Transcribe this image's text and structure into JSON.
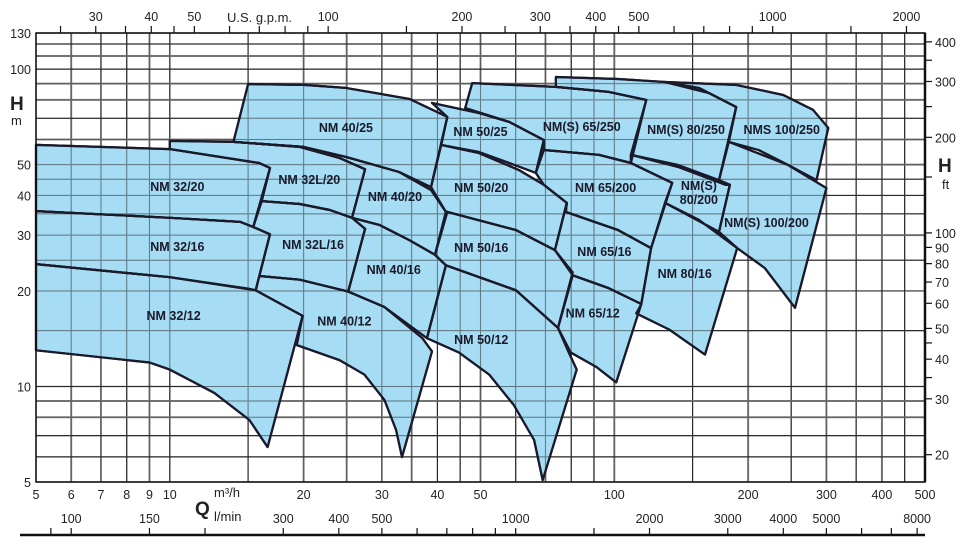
{
  "chart_data": {
    "type": "area",
    "grid": true,
    "fill_color": "#9fd9f3",
    "stroke_color": "#1a1a2a",
    "x_axis": {
      "symbol": "Q",
      "unit": "m³/h",
      "scale": "log",
      "range": [
        5,
        500
      ],
      "ticks": [
        5,
        6,
        7,
        8,
        9,
        10,
        20,
        30,
        40,
        50,
        100,
        200,
        300,
        400,
        500
      ],
      "tick_labels": [
        "5",
        "6",
        "7",
        "8",
        "9",
        "10",
        "20",
        "30",
        "40",
        "50",
        "100",
        "200",
        "300",
        "400",
        "500"
      ],
      "grid_dark": [
        5,
        8,
        10,
        15,
        30,
        40,
        45,
        60,
        80,
        150,
        250,
        350,
        450
      ],
      "grid_light": [
        6,
        7,
        9,
        20,
        25,
        35,
        50,
        70,
        90,
        100,
        200,
        300,
        400,
        500
      ]
    },
    "x2_axis": {
      "unit": "l/min",
      "factor_per_m3h": 16.667,
      "ticks": [
        100,
        150,
        300,
        400,
        500,
        1000,
        2000,
        3000,
        4000,
        5000,
        8000
      ],
      "tick_labels": [
        "100",
        "150",
        "300",
        "400",
        "500",
        "1000",
        "2000",
        "3000",
        "4000",
        "5000",
        "8000"
      ],
      "minor_ticks": [
        90,
        200,
        600,
        700,
        800,
        900,
        1500,
        6000,
        7000
      ]
    },
    "top_axis": {
      "unit": "U.S. g.p.m.",
      "factor_per_m3h": 4.403,
      "ticks": [
        30,
        40,
        50,
        100,
        200,
        300,
        400,
        500,
        1000,
        2000
      ],
      "tick_labels": [
        "30",
        "40",
        "50",
        "100",
        "200",
        "300",
        "400",
        "500",
        "1000",
        "2000"
      ],
      "minor_ticks": [
        25,
        35,
        45,
        60,
        70,
        80,
        90,
        150,
        250,
        350,
        450,
        600,
        700,
        800,
        900,
        1500
      ]
    },
    "y_axis": {
      "symbol": "H",
      "unit": "m",
      "scale": "log",
      "range": [
        5,
        130
      ],
      "ticks": [
        5,
        10,
        20,
        30,
        40,
        50,
        100,
        130
      ],
      "tick_labels": [
        "5",
        "10",
        "20",
        "30",
        "40",
        "50",
        "100",
        "130"
      ],
      "grid_dark": [
        130,
        120,
        100,
        70,
        45,
        40,
        35,
        25,
        20,
        15,
        10,
        7,
        6,
        5
      ],
      "grid_light": [
        110,
        90,
        80,
        60,
        50,
        30,
        9,
        8
      ]
    },
    "y2_axis": {
      "symbol": "H",
      "unit": "ft",
      "m_per_ft": 0.3048,
      "ticks": [
        20,
        30,
        40,
        50,
        60,
        70,
        80,
        90,
        100,
        200,
        300,
        400
      ],
      "tick_labels": [
        "20",
        "30",
        "40",
        "50",
        "60",
        "70",
        "80",
        "90",
        "100",
        "200",
        "300",
        "400"
      ],
      "minor_ticks": [
        35,
        45,
        150,
        250,
        350
      ]
    },
    "series": [
      {
        "name": "NM 32/20",
        "label_at": [
          10.4,
          42.5
        ],
        "polygon": [
          [
            5,
            57.7
          ],
          [
            10,
            56.0
          ],
          [
            15.9,
            50.6
          ],
          [
            16.8,
            48.8
          ],
          [
            15.4,
            31.8
          ],
          [
            14.4,
            33.0
          ],
          [
            10,
            34.0
          ],
          [
            5,
            35.7
          ]
        ]
      },
      {
        "name": "NM 32/16",
        "label_at": [
          10.4,
          27.5
        ],
        "polygon": [
          [
            5,
            35.7
          ],
          [
            10,
            34.0
          ],
          [
            14.4,
            33.0
          ],
          [
            15.4,
            31.8
          ],
          [
            16.8,
            30.2
          ],
          [
            15.6,
            20.1
          ],
          [
            15.1,
            20.3
          ],
          [
            10,
            22.1
          ],
          [
            5,
            24.3
          ]
        ]
      },
      {
        "name": "NM 32/12",
        "label_at": [
          10.2,
          16.7
        ],
        "polygon": [
          [
            5,
            24.3
          ],
          [
            10,
            22.1
          ],
          [
            15.6,
            20.1
          ],
          [
            19.9,
            16.7
          ],
          [
            16.6,
            6.44
          ],
          [
            15.1,
            7.84
          ],
          [
            12.6,
            9.54
          ],
          [
            10,
            11.3
          ],
          [
            9.0,
            11.9
          ],
          [
            5,
            13.0
          ]
        ]
      },
      {
        "name": "NM 32L/20",
        "label_at": [
          20.6,
          44.7
        ],
        "polygon": [
          [
            10,
            59.4
          ],
          [
            14.0,
            59.0
          ],
          [
            19.6,
            56.9
          ],
          [
            24.1,
            52.5
          ],
          [
            27.5,
            48.4
          ],
          [
            25.7,
            34.0
          ],
          [
            22.9,
            36.0
          ],
          [
            19.6,
            37.6
          ],
          [
            16.1,
            38.4
          ],
          [
            16.8,
            48.8
          ],
          [
            15.9,
            50.6
          ],
          [
            10,
            56.0
          ]
        ]
      },
      {
        "name": "NM 32L/16",
        "label_at": [
          21.0,
          27.9
        ],
        "polygon": [
          [
            16.1,
            38.4
          ],
          [
            19.6,
            37.6
          ],
          [
            22.9,
            36.0
          ],
          [
            25.7,
            34.0
          ],
          [
            27.5,
            31.4
          ],
          [
            25.2,
            19.9
          ],
          [
            19.6,
            21.7
          ],
          [
            15.9,
            22.3
          ],
          [
            16.8,
            30.2
          ],
          [
            15.4,
            31.8
          ]
        ]
      },
      {
        "name": "NM 40/25",
        "label_at": [
          24.9,
          65.3
        ],
        "polygon": [
          [
            15.0,
            89.8
          ],
          [
            20,
            89.2
          ],
          [
            24.9,
            87.3
          ],
          [
            34.6,
            80.6
          ],
          [
            42.1,
            70.7
          ],
          [
            38.7,
            42.5
          ],
          [
            32.8,
            47.4
          ],
          [
            24.9,
            52.9
          ],
          [
            20,
            56.9
          ],
          [
            13.9,
            59.0
          ]
        ]
      },
      {
        "name": "NM 40/20",
        "label_at": [
          32.1,
          39.5
        ],
        "polygon": [
          [
            13.9,
            59.0
          ],
          [
            20,
            56.9
          ],
          [
            24.9,
            52.9
          ],
          [
            32.8,
            47.4
          ],
          [
            38.7,
            41.6
          ],
          [
            41.8,
            35.5
          ],
          [
            39.5,
            26.0
          ],
          [
            34.6,
            28.9
          ],
          [
            29.6,
            32.3
          ],
          [
            25.7,
            34.0
          ],
          [
            27.5,
            48.4
          ],
          [
            24.1,
            52.5
          ],
          [
            19.6,
            56.9
          ]
        ]
      },
      {
        "name": "NM 40/16",
        "label_at": [
          31.9,
          23.3
        ],
        "polygon": [
          [
            25.7,
            34.0
          ],
          [
            29.6,
            32.3
          ],
          [
            34.6,
            28.9
          ],
          [
            39.5,
            26.0
          ],
          [
            41.8,
            24.1
          ],
          [
            37.9,
            14.2
          ],
          [
            30.4,
            17.8
          ],
          [
            25.2,
            19.9
          ],
          [
            27.5,
            31.4
          ]
        ]
      },
      {
        "name": "NM 40/12",
        "label_at": [
          24.7,
          16.0
        ],
        "polygon": [
          [
            15.9,
            22.3
          ],
          [
            19.6,
            21.7
          ],
          [
            25.2,
            19.9
          ],
          [
            30.4,
            17.8
          ],
          [
            37.0,
            14.2
          ],
          [
            38.9,
            12.9
          ],
          [
            33.3,
            5.99
          ],
          [
            32.3,
            7.29
          ],
          [
            30.4,
            9.07
          ],
          [
            27.4,
            10.9
          ],
          [
            24.1,
            12.1
          ],
          [
            19.3,
            13.5
          ],
          [
            19.9,
            16.7
          ],
          [
            15.6,
            20.1
          ]
        ]
      },
      {
        "name": "NM 50/25",
        "label_at": [
          50,
          63.3
        ],
        "polygon": [
          [
            38.9,
            78.3
          ],
          [
            49.6,
            72.7
          ],
          [
            58.0,
            68.2
          ],
          [
            69.4,
            59.8
          ],
          [
            66.6,
            47.1
          ],
          [
            58.0,
            50.6
          ],
          [
            49.6,
            54.8
          ],
          [
            40.8,
            57.7
          ],
          [
            42.1,
            70.7
          ]
        ]
      },
      {
        "name": "NM 50/20",
        "label_at": [
          50.2,
          42.2
        ],
        "polygon": [
          [
            40.8,
            57.7
          ],
          [
            49.6,
            54.4
          ],
          [
            61.0,
            48.1
          ],
          [
            69.4,
            43.2
          ],
          [
            78.2,
            37.9
          ],
          [
            73.5,
            26.9
          ],
          [
            60.1,
            31.1
          ],
          [
            42.1,
            35.5
          ],
          [
            41.8,
            35.5
          ],
          [
            38.7,
            42.5
          ]
        ]
      },
      {
        "name": "NM 50/16",
        "label_at": [
          50.2,
          27.3
        ],
        "polygon": [
          [
            42.1,
            35.5
          ],
          [
            60.1,
            31.1
          ],
          [
            73.5,
            26.9
          ],
          [
            80.6,
            22.9
          ],
          [
            74.7,
            15.3
          ],
          [
            60.1,
            20.1
          ],
          [
            41.8,
            24.1
          ],
          [
            39.5,
            26.0
          ]
        ]
      },
      {
        "name": "NM 50/12",
        "label_at": [
          50.2,
          14.0
        ],
        "polygon": [
          [
            41.8,
            24.1
          ],
          [
            60.1,
            20.1
          ],
          [
            74.7,
            15.3
          ],
          [
            79.0,
            12.8
          ],
          [
            82.3,
            11.3
          ],
          [
            69.0,
            5.07
          ],
          [
            66.0,
            6.78
          ],
          [
            59.4,
            8.74
          ],
          [
            52.3,
            10.9
          ],
          [
            44.7,
            12.8
          ],
          [
            37.9,
            14.2
          ]
        ]
      },
      {
        "name": "NM(S) 65/250",
        "label_at": [
          84.5,
          65.7
        ],
        "polygon": [
          [
            47.9,
            90.4
          ],
          [
            73.9,
            87.9
          ],
          [
            97.2,
            84.8
          ],
          [
            118,
            80.0
          ],
          [
            109,
            50.6
          ],
          [
            92.3,
            53.7
          ],
          [
            69.4,
            55.6
          ],
          [
            69.4,
            59.8
          ],
          [
            58.0,
            68.2
          ],
          [
            46.2,
            75.4
          ]
        ]
      },
      {
        "name": "NM(S) 80/250",
        "label_at": [
          145,
          64.3
        ],
        "polygon": [
          [
            73.9,
            94.5
          ],
          [
            102,
            93.1
          ],
          [
            130,
            91.1
          ],
          [
            163,
            84.2
          ],
          [
            188,
            76.0
          ],
          [
            172,
            44.7
          ],
          [
            139,
            49.9
          ],
          [
            109,
            53.7
          ],
          [
            118,
            80.0
          ],
          [
            97.2,
            84.8
          ],
          [
            73.9,
            87.9
          ]
        ]
      },
      {
        "name": "NMS 100/250",
        "label_at": [
          238,
          64.3
        ],
        "polygon": [
          [
            130,
            91.1
          ],
          [
            188,
            89.2
          ],
          [
            240,
            82.9
          ],
          [
            280,
            74.4
          ],
          [
            303,
            65.3
          ],
          [
            285,
            44.7
          ],
          [
            246,
            49.9
          ],
          [
            211,
            55.6
          ],
          [
            181,
            59.0
          ],
          [
            188,
            76.0
          ],
          [
            155,
            87.3
          ]
        ]
      },
      {
        "name": "NM 65/200",
        "label_at": [
          95.6,
          42.2
        ],
        "polygon": [
          [
            69.4,
            55.6
          ],
          [
            92.3,
            53.7
          ],
          [
            109,
            50.6
          ],
          [
            135,
            43.8
          ],
          [
            121,
            27.3
          ],
          [
            102,
            31.1
          ],
          [
            77.8,
            35.5
          ],
          [
            78.2,
            37.9
          ],
          [
            69.4,
            43.2
          ],
          [
            66.6,
            47.1
          ]
        ]
      },
      {
        "name": "NM(S) 80/200",
        "name_lines": [
          "NM(S)",
          "80/200"
        ],
        "label_at": [
          155,
          40.7
        ],
        "polygon": [
          [
            109,
            53.7
          ],
          [
            139,
            49.2
          ],
          [
            178,
            43.2
          ],
          [
            182,
            43.2
          ],
          [
            172,
            30.7
          ],
          [
            130,
            37.9
          ],
          [
            135,
            43.8
          ],
          [
            109,
            50.6
          ]
        ]
      },
      {
        "name": "NM(S) 100/200",
        "label_at": [
          220,
          32.7
        ],
        "polygon": [
          [
            181,
            59.0
          ],
          [
            246,
            49.9
          ],
          [
            300,
            42.2
          ],
          [
            255,
            17.7
          ],
          [
            218,
            23.6
          ],
          [
            189,
            27.3
          ],
          [
            172,
            30.7
          ],
          [
            182,
            43.2
          ],
          [
            172,
            44.7
          ]
        ]
      },
      {
        "name": "NM 65/16",
        "label_at": [
          95,
          26.5
        ],
        "polygon": [
          [
            77.8,
            35.5
          ],
          [
            102,
            31.1
          ],
          [
            121,
            27.3
          ],
          [
            115,
            18.2
          ],
          [
            97.2,
            20.4
          ],
          [
            80.6,
            22.4
          ],
          [
            73.5,
            26.9
          ],
          [
            78.2,
            37.9
          ]
        ]
      },
      {
        "name": "NM 80/16",
        "label_at": [
          144,
          22.6
        ],
        "polygon": [
          [
            130,
            37.9
          ],
          [
            155,
            33.5
          ],
          [
            189,
            27.3
          ],
          [
            160,
            12.6
          ],
          [
            133,
            15.1
          ],
          [
            112,
            17.0
          ],
          [
            115,
            18.2
          ],
          [
            121,
            27.3
          ]
        ]
      },
      {
        "name": "NM 65/12",
        "label_at": [
          89.4,
          17.0
        ],
        "polygon": [
          [
            80.6,
            22.4
          ],
          [
            97.2,
            20.4
          ],
          [
            115,
            18.2
          ],
          [
            101,
            10.3
          ],
          [
            91.3,
            11.5
          ],
          [
            79.8,
            12.8
          ],
          [
            74.7,
            15.3
          ]
        ]
      }
    ]
  }
}
